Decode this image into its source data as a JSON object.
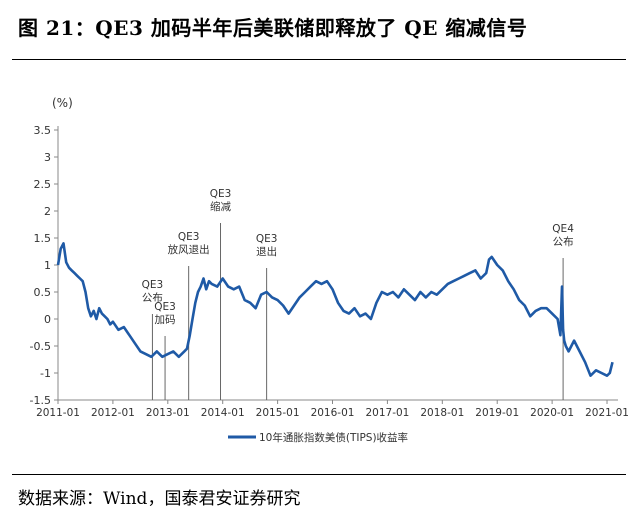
{
  "figure": {
    "title": "图 21：QE3 加码半年后美联储即释放了 QE 缩减信号",
    "source": "数据来源：Wind，国泰君安证券研究"
  },
  "chart_data": {
    "type": "line",
    "title": "",
    "ylabel": "(%)",
    "xlabel": "",
    "ylim": [
      -1.5,
      3.5
    ],
    "yticks": [
      3.5,
      3,
      2.5,
      2,
      1.5,
      1,
      0.5,
      0,
      -0.5,
      -1,
      -1.5
    ],
    "ytick_labels": [
      "3.5",
      "3",
      "2.5",
      "2",
      "1.5",
      "1",
      "0.5",
      "0",
      "-0.5",
      "-1",
      "-1.5"
    ],
    "xlim": [
      2011.0,
      2021.2
    ],
    "xticks": [
      2011,
      2012,
      2013,
      2014,
      2015,
      2016,
      2017,
      2018,
      2019,
      2020,
      2021
    ],
    "xtick_labels": [
      "2011-01",
      "2012-01",
      "2013-01",
      "2014-01",
      "2015-01",
      "2016-01",
      "2017-01",
      "2018-01",
      "2019-01",
      "2020-01",
      "2021-01"
    ],
    "legend": "bottom-center",
    "series": [
      {
        "name": "10年通胀指数美债(TIPS)收益率",
        "color": "#1f5aa6",
        "x": [
          2011.0,
          2011.05,
          2011.1,
          2011.15,
          2011.2,
          2011.25,
          2011.3,
          2011.35,
          2011.4,
          2011.45,
          2011.5,
          2011.55,
          2011.6,
          2011.65,
          2011.7,
          2011.75,
          2011.8,
          2011.85,
          2011.9,
          2011.95,
          2012.0,
          2012.1,
          2012.2,
          2012.3,
          2012.4,
          2012.5,
          2012.6,
          2012.7,
          2012.8,
          2012.9,
          2013.0,
          2013.1,
          2013.2,
          2013.3,
          2013.35,
          2013.4,
          2013.45,
          2013.5,
          2013.55,
          2013.6,
          2013.65,
          2013.7,
          2013.75,
          2013.8,
          2013.9,
          2014.0,
          2014.1,
          2014.2,
          2014.3,
          2014.4,
          2014.5,
          2014.6,
          2014.7,
          2014.8,
          2014.9,
          2015.0,
          2015.1,
          2015.2,
          2015.3,
          2015.4,
          2015.5,
          2015.6,
          2015.7,
          2015.8,
          2015.9,
          2016.0,
          2016.1,
          2016.2,
          2016.3,
          2016.4,
          2016.5,
          2016.6,
          2016.7,
          2016.8,
          2016.9,
          2017.0,
          2017.1,
          2017.2,
          2017.3,
          2017.4,
          2017.5,
          2017.6,
          2017.7,
          2017.8,
          2017.9,
          2018.0,
          2018.1,
          2018.2,
          2018.3,
          2018.4,
          2018.5,
          2018.6,
          2018.7,
          2018.8,
          2018.85,
          2018.9,
          2019.0,
          2019.1,
          2019.2,
          2019.3,
          2019.4,
          2019.5,
          2019.6,
          2019.7,
          2019.8,
          2019.9,
          2020.0,
          2020.1,
          2020.15,
          2020.18,
          2020.2,
          2020.22,
          2020.25,
          2020.3,
          2020.4,
          2020.5,
          2020.6,
          2020.7,
          2020.8,
          2020.9,
          2021.0,
          2021.05,
          2021.1
        ],
        "y": [
          1.0,
          1.3,
          1.4,
          1.05,
          0.95,
          0.9,
          0.85,
          0.8,
          0.75,
          0.7,
          0.5,
          0.2,
          0.05,
          0.15,
          0.0,
          0.2,
          0.1,
          0.05,
          0.0,
          -0.1,
          -0.05,
          -0.2,
          -0.15,
          -0.3,
          -0.45,
          -0.6,
          -0.65,
          -0.7,
          -0.6,
          -0.7,
          -0.65,
          -0.6,
          -0.7,
          -0.6,
          -0.55,
          -0.3,
          0.0,
          0.3,
          0.5,
          0.6,
          0.75,
          0.55,
          0.7,
          0.65,
          0.6,
          0.75,
          0.6,
          0.55,
          0.6,
          0.35,
          0.3,
          0.2,
          0.45,
          0.5,
          0.4,
          0.35,
          0.25,
          0.1,
          0.25,
          0.4,
          0.5,
          0.6,
          0.7,
          0.65,
          0.7,
          0.55,
          0.3,
          0.15,
          0.1,
          0.2,
          0.05,
          0.1,
          0.0,
          0.3,
          0.5,
          0.45,
          0.5,
          0.4,
          0.55,
          0.45,
          0.35,
          0.5,
          0.4,
          0.5,
          0.45,
          0.55,
          0.65,
          0.7,
          0.75,
          0.8,
          0.85,
          0.9,
          0.75,
          0.85,
          1.1,
          1.15,
          1.0,
          0.9,
          0.7,
          0.55,
          0.35,
          0.25,
          0.05,
          0.15,
          0.2,
          0.2,
          0.1,
          0.0,
          -0.3,
          0.6,
          -0.2,
          -0.4,
          -0.5,
          -0.6,
          -0.4,
          -0.6,
          -0.8,
          -1.05,
          -0.95,
          -1.0,
          -1.05,
          -1.0,
          -0.8
        ]
      }
    ],
    "annotations": [
      {
        "x": 2012.72,
        "lines": [
          "QE3",
          "公布"
        ]
      },
      {
        "x": 2012.95,
        "lines": [
          "QE3",
          "加码"
        ]
      },
      {
        "x": 2013.38,
        "lines": [
          "QE3",
          "放风退出"
        ]
      },
      {
        "x": 2013.96,
        "lines": [
          "QE3",
          "缩减"
        ]
      },
      {
        "x": 2014.8,
        "lines": [
          "QE3",
          "退出"
        ]
      },
      {
        "x": 2020.2,
        "lines": [
          "QE4",
          "公布"
        ]
      }
    ]
  }
}
